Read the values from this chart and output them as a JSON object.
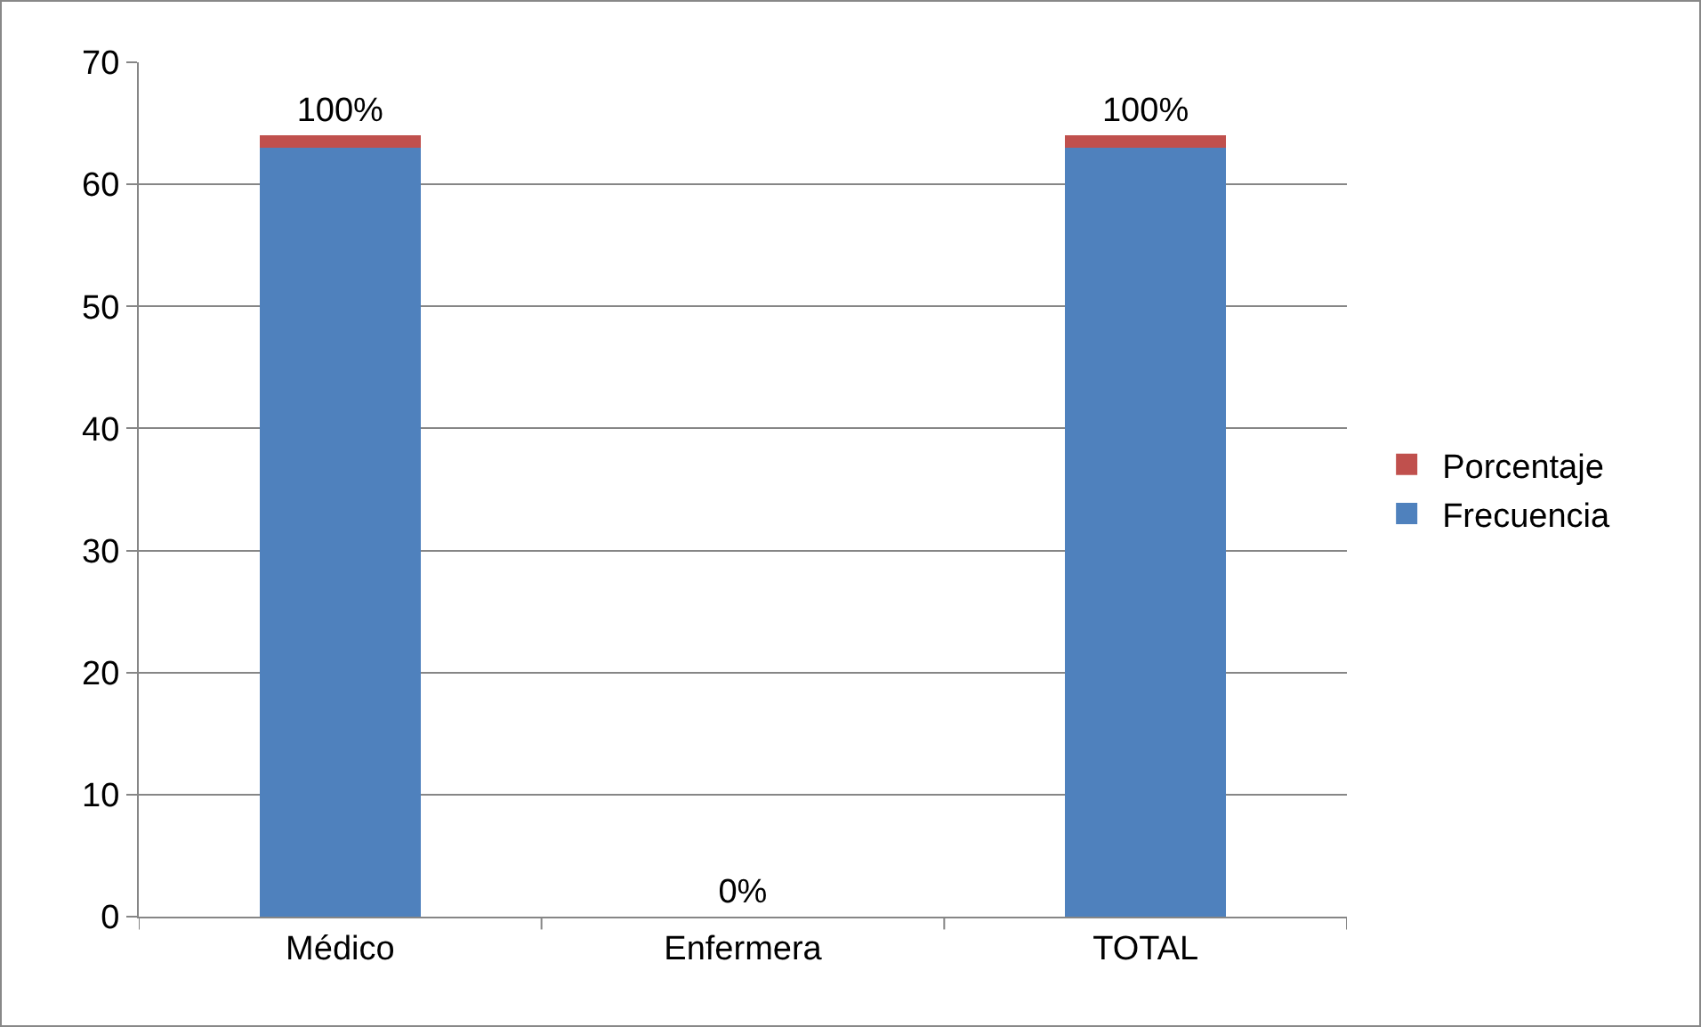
{
  "chart_data": {
    "type": "bar",
    "stacked": true,
    "categories": [
      "Médico",
      "Enfermera",
      "TOTAL"
    ],
    "series": [
      {
        "name": "Frecuencia",
        "color": "#4f81bd",
        "values": [
          63,
          0,
          63
        ]
      },
      {
        "name": "Porcentaje",
        "color": "#c0504d",
        "values": [
          1,
          0,
          1
        ],
        "value_labels": [
          "100%",
          "0%",
          "100%"
        ]
      }
    ],
    "ylim": [
      0,
      70
    ],
    "yticks": [
      0,
      10,
      20,
      30,
      40,
      50,
      60,
      70
    ],
    "grid": "y",
    "legend": "right"
  }
}
